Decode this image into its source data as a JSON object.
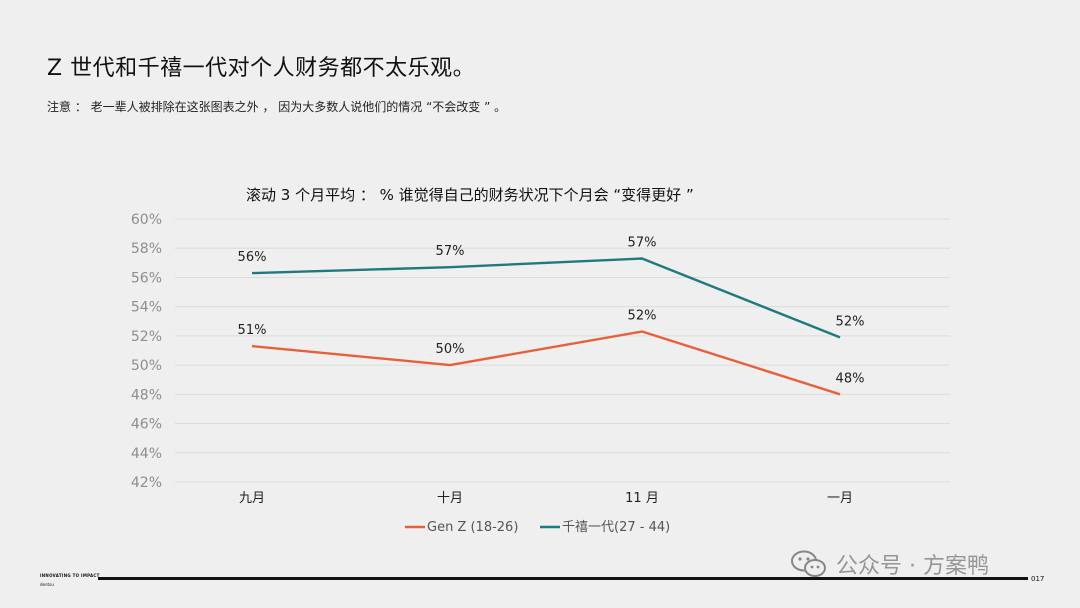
{
  "page": {
    "title": "Z 世代和千禧一代对个人财务都不太乐观。",
    "note": "注意 ： 老一辈人被排除在这张图表之外 ， 因为大多数人说他们的情况 “不会改变 ” 。"
  },
  "chart_data": {
    "type": "line",
    "title": "滚动 3 个月平均 ： % 谁觉得自己的财务状况下个月会 “变得更好 ”",
    "categories": [
      "九月",
      "十月",
      "11 月",
      "一月"
    ],
    "y_ticks": [
      "60%",
      "58%",
      "56%",
      "54%",
      "52%",
      "50%",
      "48%",
      "46%",
      "44%",
      "42%"
    ],
    "ylim": [
      42,
      60
    ],
    "xlabel": "",
    "ylabel": "",
    "grid": true,
    "legend_position": "bottom",
    "series": [
      {
        "name": "Gen Z (18-26)",
        "color": "#e8603a",
        "values": [
          51.3,
          50.0,
          52.3,
          48.0
        ],
        "labels": [
          "51%",
          "50%",
          "52%",
          "48%"
        ]
      },
      {
        "name": "千禧一代(27 - 44)",
        "color": "#1f7a7e",
        "values": [
          56.3,
          56.7,
          57.3,
          51.9
        ],
        "labels": [
          "56%",
          "57%",
          "57%",
          "52%"
        ]
      }
    ]
  },
  "footer": {
    "tagline": "INNOVATING TO IMPACT",
    "brand": "dentsu",
    "page_number": "017"
  },
  "watermark": {
    "text": "公众号 · 方案鸭",
    "icon": "wechat-icon"
  }
}
